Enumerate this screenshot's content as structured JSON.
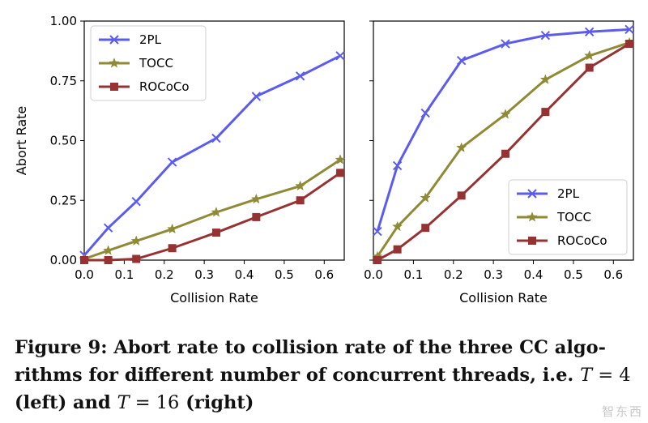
{
  "chart_data": [
    {
      "type": "line",
      "panel": "left",
      "x": [
        0.0,
        0.06,
        0.13,
        0.22,
        0.33,
        0.43,
        0.54,
        0.64
      ],
      "series": [
        {
          "name": "2PL",
          "color": "#5b5bf0",
          "marker": "x",
          "values": [
            0.02,
            0.135,
            0.245,
            0.41,
            0.51,
            0.685,
            0.77,
            0.855
          ]
        },
        {
          "name": "TOCC",
          "color": "#8f8a35",
          "marker": "star",
          "values": [
            0.005,
            0.04,
            0.08,
            0.13,
            0.2,
            0.255,
            0.31,
            0.42
          ]
        },
        {
          "name": "ROCoCo",
          "color": "#963232",
          "marker": "square",
          "values": [
            0.0,
            0.0,
            0.005,
            0.05,
            0.115,
            0.18,
            0.25,
            0.365
          ]
        }
      ],
      "xlabel": "Collision Rate",
      "ylabel": "Abort Rate",
      "xlim": [
        0.0,
        0.65
      ],
      "ylim": [
        0.0,
        1.0
      ],
      "xticks": [
        "0.0",
        "0.1",
        "0.2",
        "0.3",
        "0.4",
        "0.5",
        "0.6"
      ],
      "yticks": [
        "0.00",
        "0.25",
        "0.50",
        "0.75",
        "1.00"
      ],
      "legend": "top-left"
    },
    {
      "type": "line",
      "panel": "right",
      "x": [
        0.01,
        0.06,
        0.13,
        0.22,
        0.33,
        0.43,
        0.54,
        0.64
      ],
      "series": [
        {
          "name": "2PL",
          "color": "#5b5bf0",
          "marker": "x",
          "values": [
            0.12,
            0.395,
            0.615,
            0.835,
            0.905,
            0.94,
            0.955,
            0.965
          ]
        },
        {
          "name": "TOCC",
          "color": "#8f8a35",
          "marker": "star",
          "values": [
            0.015,
            0.14,
            0.26,
            0.47,
            0.61,
            0.755,
            0.855,
            0.91
          ]
        },
        {
          "name": "ROCoCo",
          "color": "#963232",
          "marker": "square",
          "values": [
            0.0,
            0.045,
            0.135,
            0.27,
            0.445,
            0.62,
            0.805,
            0.905
          ]
        }
      ],
      "xlabel": "Collision Rate",
      "xlim": [
        0.0,
        0.65
      ],
      "ylim": [
        0.0,
        1.0
      ],
      "xticks": [
        "0.0",
        "0.1",
        "0.2",
        "0.3",
        "0.4",
        "0.5",
        "0.6"
      ],
      "legend": "bottom-right"
    }
  ],
  "caption": {
    "lead": "Figure 9: Abort rate to collision rate of the three CC algo-rithms for different number of concurrent threads, i.e.",
    "var1": "T",
    "eq1": " = 4",
    "mid": " (left) and ",
    "var2": "T",
    "eq2": " = 16",
    "tail": " (right)"
  }
}
